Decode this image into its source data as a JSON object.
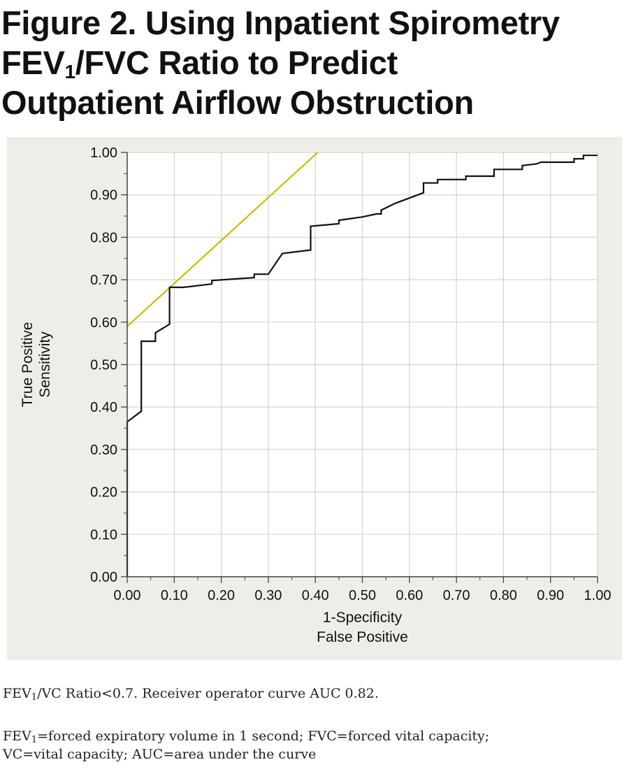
{
  "title": {
    "line1": "Figure 2. Using Inpatient Spirometry",
    "line2_a": "FEV",
    "line2_sub": "1",
    "line2_b": "/FVC Ratio to Predict",
    "line3": "Outpatient Airflow Obstruction"
  },
  "chart_data": {
    "type": "line",
    "title": "Figure 2. Using Inpatient Spirometry FEV1/FVC Ratio to Predict Outpatient Airflow Obstruction",
    "xlabel": [
      "1-Specificity",
      "False Positive"
    ],
    "ylabel": [
      "True Positive",
      "Sensitivity"
    ],
    "xlim": [
      0,
      1
    ],
    "ylim": [
      0,
      1
    ],
    "x_ticks": [
      "0.00",
      "0.10",
      "0.20",
      "0.30",
      "0.40",
      "0.50",
      "0.60",
      "0.70",
      "0.80",
      "0.90",
      "1.00"
    ],
    "y_ticks": [
      "0.00",
      "0.10",
      "0.20",
      "0.30",
      "0.40",
      "0.50",
      "0.60",
      "0.70",
      "0.80",
      "0.90",
      "1.00"
    ],
    "grid": true,
    "series": [
      {
        "color": "#111111",
        "x": [
          0,
          0,
          0.03,
          0.03,
          0.06,
          0.06,
          0.09,
          0.09,
          0.12,
          0.18,
          0.18,
          0.27,
          0.27,
          0.3,
          0.33,
          0.39,
          0.39,
          0.45,
          0.45,
          0.5,
          0.53,
          0.54,
          0.54,
          0.57,
          0.63,
          0.63,
          0.66,
          0.66,
          0.72,
          0.72,
          0.78,
          0.78,
          0.84,
          0.84,
          0.87,
          0.88,
          0.9,
          0.9,
          0.93,
          0.95,
          0.95,
          0.97,
          0.97,
          1.0
        ],
        "y": [
          0,
          0.365,
          0.39,
          0.555,
          0.555,
          0.575,
          0.595,
          0.682,
          0.682,
          0.69,
          0.698,
          0.705,
          0.713,
          0.713,
          0.762,
          0.77,
          0.826,
          0.832,
          0.84,
          0.848,
          0.855,
          0.855,
          0.864,
          0.88,
          0.905,
          0.928,
          0.928,
          0.936,
          0.936,
          0.944,
          0.944,
          0.96,
          0.96,
          0.969,
          0.973,
          0.977,
          0.977,
          0.977,
          0.977,
          0.977,
          0.985,
          0.985,
          0.993,
          0.993
        ]
      },
      {
        "color": "#c8b400",
        "x": [
          0,
          0.405
        ],
        "y": [
          0.59,
          1.0
        ]
      }
    ]
  },
  "caption": {
    "line1_a": "FEV",
    "line1_sub": "1",
    "line1_b": "/VC Ratio<0.7. Receiver operator curve AUC 0.82.",
    "line2_a": "FEV",
    "line2_sub": "1",
    "line2_b": "=forced expiratory volume in 1 second; FVC=forced vital capacity;",
    "line3": "VC=vital capacity; AUC=area under the curve"
  }
}
